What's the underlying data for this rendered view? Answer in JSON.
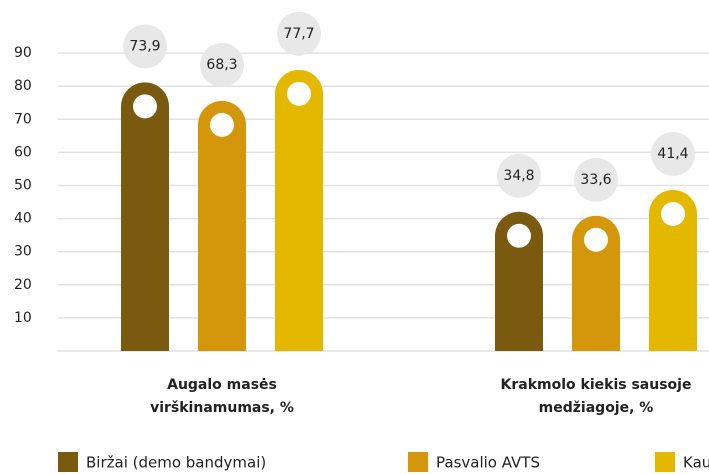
{
  "chart_data": {
    "type": "bar",
    "categories": [
      [
        "Augalo masės",
        "virškinamumas, %"
      ],
      [
        "Krakmolo kiekis sausoje",
        "medžiagoje, %"
      ]
    ],
    "series": [
      {
        "name": "Biržai (demo bandymai)",
        "color": "#7a5a0e",
        "values": [
          73.9,
          34.8
        ],
        "value_labels": [
          "73,9",
          "34,8"
        ]
      },
      {
        "name": "Pasvalio AVTS",
        "color": "#d4960a",
        "values": [
          68.3,
          33.6
        ],
        "value_labels": [
          "68,3",
          "33,6"
        ]
      },
      {
        "name": "Kau",
        "color": "#e5b800",
        "values": [
          77.7,
          41.4
        ],
        "value_labels": [
          "77,7",
          "41,4"
        ]
      }
    ],
    "ylim": [
      0,
      100
    ],
    "yticks": [
      10,
      20,
      30,
      40,
      50,
      60,
      70,
      80,
      90
    ],
    "grid": true
  }
}
